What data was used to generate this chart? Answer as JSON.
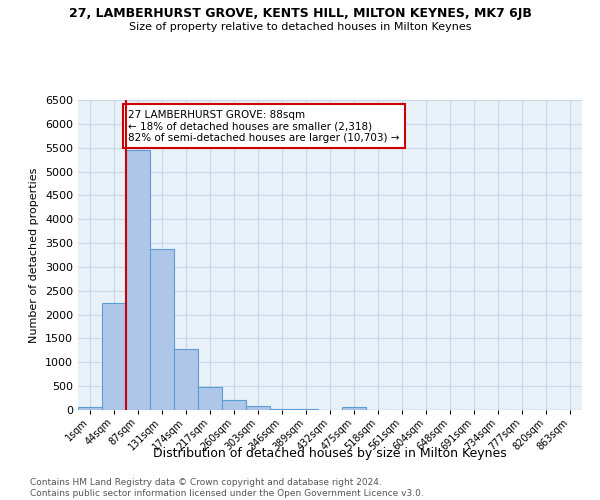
{
  "title_line1": "27, LAMBERHURST GROVE, KENTS HILL, MILTON KEYNES, MK7 6JB",
  "title_line2": "Size of property relative to detached houses in Milton Keynes",
  "xlabel": "Distribution of detached houses by size in Milton Keynes",
  "ylabel": "Number of detached properties",
  "footnote": "Contains HM Land Registry data © Crown copyright and database right 2024.\nContains public sector information licensed under the Open Government Licence v3.0.",
  "bar_labels": [
    "1sqm",
    "44sqm",
    "87sqm",
    "131sqm",
    "174sqm",
    "217sqm",
    "260sqm",
    "303sqm",
    "346sqm",
    "389sqm",
    "432sqm",
    "475sqm",
    "518sqm",
    "561sqm",
    "604sqm",
    "648sqm",
    "691sqm",
    "734sqm",
    "777sqm",
    "820sqm",
    "863sqm"
  ],
  "bar_values": [
    70,
    2250,
    5450,
    3380,
    1280,
    475,
    210,
    80,
    30,
    15,
    10,
    60,
    0,
    0,
    0,
    0,
    0,
    0,
    0,
    0,
    0
  ],
  "bar_color": "#aec6e8",
  "bar_edge_color": "#5a9fd4",
  "grid_color": "#c8d8e8",
  "background_color": "#e8f0f8",
  "annotation_text": "27 LAMBERHURST GROVE: 88sqm\n← 18% of detached houses are smaller (2,318)\n82% of semi-detached houses are larger (10,703) →",
  "annotation_box_color": "#ffffff",
  "annotation_border_color": "#cc0000",
  "vline_x": 1.5,
  "vline_color": "#cc0000",
  "ylim": [
    0,
    6500
  ],
  "yticks": [
    0,
    500,
    1000,
    1500,
    2000,
    2500,
    3000,
    3500,
    4000,
    4500,
    5000,
    5500,
    6000,
    6500
  ]
}
